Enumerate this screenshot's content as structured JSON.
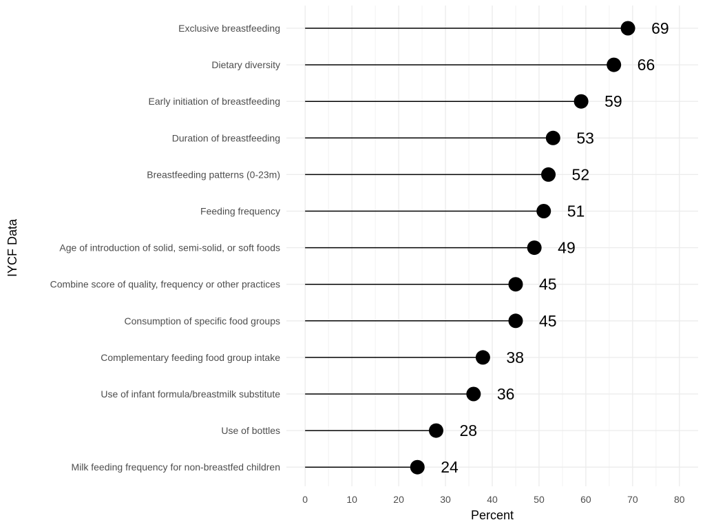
{
  "chart_data": {
    "type": "lollipop",
    "title": "",
    "xlabel": "Percent",
    "ylabel": "IYCF Data",
    "xlim": [
      -4,
      84
    ],
    "x_ticks": [
      0,
      10,
      20,
      30,
      40,
      50,
      60,
      70,
      80
    ],
    "grid": true,
    "categories": [
      "Exclusive breastfeeding",
      "Dietary diversity",
      "Early initiation of breastfeeding",
      "Duration of breastfeeding",
      "Breastfeeding patterns (0-23m)",
      "Feeding frequency",
      "Age of introduction of solid, semi-solid, or soft foods",
      "Combine score of quality, frequency or other practices",
      "Consumption of specific food groups",
      "Complementary feeding food group intake",
      "Use of infant formula/breastmilk substitute",
      "Use of bottles",
      "Milk feeding frequency for non-breastfed children"
    ],
    "values": [
      69,
      66,
      59,
      53,
      52,
      51,
      49,
      45,
      45,
      38,
      36,
      28,
      24
    ],
    "colors": {
      "point": "#000000",
      "stem": "#000000",
      "grid_major": "#ebebeb",
      "grid_minor": "#f2f2f2"
    }
  }
}
